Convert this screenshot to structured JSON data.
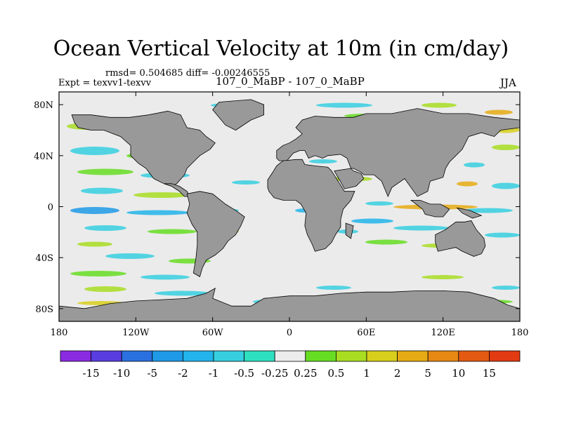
{
  "chart_data": {
    "type": "heatmap",
    "title": "Ocean Vertical Velocity at 10m (in cm/day)",
    "stats": "rmsd= 0.504685 diff= -0.00246555",
    "expt": "Expt = texvv1-texvv",
    "case": "107_0_MaBP - 107_0_MaBP",
    "season": "JJA",
    "x_range": [
      -180,
      180
    ],
    "y_range": [
      -90,
      90
    ],
    "x_ticks": [
      {
        "value": -180,
        "label": "180"
      },
      {
        "value": -120,
        "label": "120W"
      },
      {
        "value": -60,
        "label": "60W"
      },
      {
        "value": 0,
        "label": "0"
      },
      {
        "value": 60,
        "label": "60E"
      },
      {
        "value": 120,
        "label": "120E"
      },
      {
        "value": 180,
        "label": "180"
      }
    ],
    "y_ticks": [
      {
        "value": 80,
        "label": "80N"
      },
      {
        "value": 40,
        "label": "40N"
      },
      {
        "value": 0,
        "label": "0"
      },
      {
        "value": -40,
        "label": "40S"
      },
      {
        "value": -80,
        "label": "80S"
      }
    ],
    "colorbar": {
      "levels": [
        "-15",
        "-10",
        "-5",
        "-2",
        "-1",
        "-0.5",
        "-0.25",
        "0.25",
        "0.5",
        "1",
        "2",
        "5",
        "10",
        "15"
      ],
      "colors": [
        "#8a2be2",
        "#5a3de0",
        "#2a70e0",
        "#1e9ae6",
        "#22b4ea",
        "#37cfe0",
        "#2fe0c0",
        "#ececec",
        "#66dd22",
        "#a8dd22",
        "#d8cf1c",
        "#e6ab14",
        "#e78812",
        "#e45a12",
        "#e23a12"
      ]
    },
    "land_color": "#999999"
  }
}
